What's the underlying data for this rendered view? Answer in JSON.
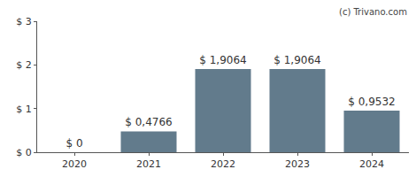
{
  "chart_data": {
    "type": "bar",
    "categories": [
      "2020",
      "2021",
      "2022",
      "2023",
      "2024"
    ],
    "values": [
      0,
      0.4766,
      1.9064,
      1.9064,
      0.9532
    ],
    "value_labels": [
      "$ 0",
      "$ 0,4766",
      "$ 1,9064",
      "$ 1,9064",
      "$ 0,9532"
    ],
    "data_labels": true,
    "color": "#627b8c",
    "ylim": [
      0,
      3
    ],
    "yticks": [
      {
        "value": 0,
        "label": "$ 0"
      },
      {
        "value": 1,
        "label": "$ 1"
      },
      {
        "value": 2,
        "label": "$ 2"
      },
      {
        "value": 3,
        "label": "$ 3"
      }
    ],
    "grid": false,
    "annotations": [
      "(c) Trivano.com"
    ]
  }
}
